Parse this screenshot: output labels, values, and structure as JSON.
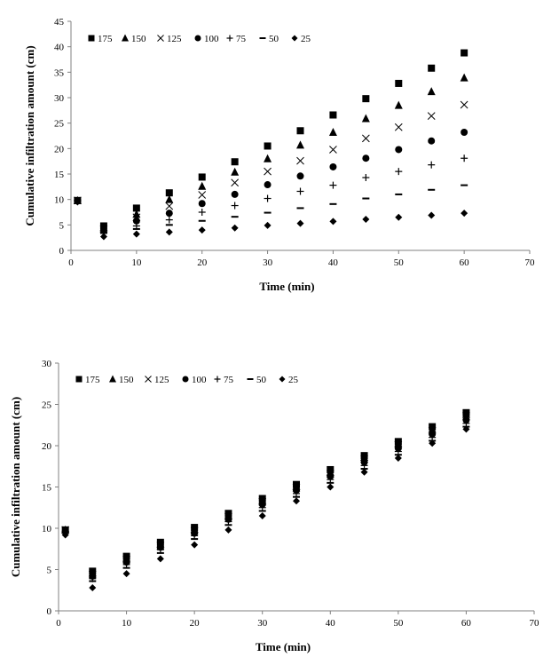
{
  "chart_data": [
    {
      "type": "scatter",
      "xlabel": "Time (min)",
      "ylabel": "Cumulative infiltration amount (cm)",
      "xlim": [
        0,
        70
      ],
      "ylim": [
        0,
        45
      ],
      "xticks": [
        0,
        10,
        20,
        30,
        40,
        50,
        60,
        70
      ],
      "yticks": [
        0,
        5,
        10,
        15,
        20,
        25,
        30,
        35,
        40,
        45
      ],
      "legend_position": "top-left",
      "x": [
        1,
        5,
        10,
        15,
        20,
        25,
        30,
        35,
        40,
        45,
        50,
        55,
        60
      ],
      "series": [
        {
          "name": "175",
          "marker": "square",
          "values": [
            9.8,
            4.8,
            8.3,
            11.3,
            14.4,
            17.4,
            20.5,
            23.5,
            26.6,
            29.8,
            32.8,
            35.8,
            38.8
          ]
        },
        {
          "name": "150",
          "marker": "triangle",
          "values": [
            9.8,
            4.5,
            7.1,
            10.0,
            12.6,
            15.4,
            18.0,
            20.7,
            23.2,
            25.9,
            28.5,
            31.2,
            33.9
          ]
        },
        {
          "name": "125",
          "marker": "x",
          "values": [
            9.8,
            4.2,
            6.5,
            8.7,
            10.9,
            13.3,
            15.5,
            17.6,
            19.8,
            22.0,
            24.2,
            26.4,
            28.6
          ]
        },
        {
          "name": "100",
          "marker": "circle",
          "values": [
            9.8,
            3.9,
            5.8,
            7.3,
            9.2,
            11.0,
            12.9,
            14.6,
            16.4,
            18.1,
            19.8,
            21.5,
            23.2
          ]
        },
        {
          "name": "75",
          "marker": "plus",
          "values": [
            9.8,
            3.6,
            4.8,
            6.0,
            7.5,
            8.8,
            10.2,
            11.6,
            12.8,
            14.3,
            15.5,
            16.8,
            18.1
          ]
        },
        {
          "name": "50",
          "marker": "dash",
          "values": [
            9.8,
            3.4,
            4.2,
            5.0,
            5.8,
            6.6,
            7.4,
            8.3,
            9.1,
            10.2,
            11.0,
            11.9,
            12.8
          ]
        },
        {
          "name": "25",
          "marker": "diamond",
          "values": [
            9.5,
            2.7,
            3.2,
            3.6,
            4.0,
            4.4,
            4.9,
            5.3,
            5.7,
            6.1,
            6.5,
            6.9,
            7.3
          ]
        }
      ]
    },
    {
      "type": "scatter",
      "xlabel": "Time (min)",
      "ylabel": "Cumulative infiltration amount (cm)",
      "xlim": [
        0,
        70
      ],
      "ylim": [
        0,
        30
      ],
      "xticks": [
        0,
        10,
        20,
        30,
        40,
        50,
        60,
        70
      ],
      "yticks": [
        0,
        5,
        10,
        15,
        20,
        25,
        30
      ],
      "legend_position": "top-left",
      "x": [
        1,
        5,
        10,
        15,
        20,
        25,
        30,
        35,
        40,
        45,
        50,
        55,
        60
      ],
      "series": [
        {
          "name": "175",
          "marker": "square",
          "values": [
            9.8,
            4.8,
            6.6,
            8.3,
            10.1,
            11.8,
            13.6,
            15.3,
            17.1,
            18.8,
            20.5,
            22.3,
            24.0
          ]
        },
        {
          "name": "150",
          "marker": "triangle",
          "values": [
            9.8,
            4.6,
            6.4,
            8.1,
            9.9,
            11.6,
            13.4,
            15.1,
            16.8,
            18.6,
            20.3,
            22.0,
            23.8
          ]
        },
        {
          "name": "125",
          "marker": "x",
          "values": [
            9.8,
            4.4,
            6.2,
            7.9,
            9.7,
            11.4,
            13.2,
            14.9,
            16.6,
            18.4,
            20.1,
            21.8,
            23.6
          ]
        },
        {
          "name": "100",
          "marker": "circle",
          "values": [
            9.6,
            4.2,
            5.9,
            7.7,
            9.4,
            11.1,
            12.9,
            14.6,
            16.3,
            18.0,
            19.7,
            21.4,
            23.1
          ]
        },
        {
          "name": "75",
          "marker": "plus",
          "values": [
            9.6,
            3.9,
            5.6,
            7.4,
            9.1,
            10.8,
            12.5,
            14.2,
            15.9,
            17.6,
            19.3,
            21.0,
            22.7
          ]
        },
        {
          "name": "50",
          "marker": "dash",
          "values": [
            9.6,
            3.6,
            5.2,
            7.0,
            8.7,
            10.4,
            12.1,
            13.8,
            15.5,
            17.2,
            18.9,
            20.6,
            22.3
          ]
        },
        {
          "name": "25",
          "marker": "diamond",
          "values": [
            9.2,
            2.8,
            4.5,
            6.3,
            8.0,
            9.8,
            11.5,
            13.3,
            15.0,
            16.8,
            18.5,
            20.3,
            22.0
          ]
        }
      ]
    }
  ]
}
